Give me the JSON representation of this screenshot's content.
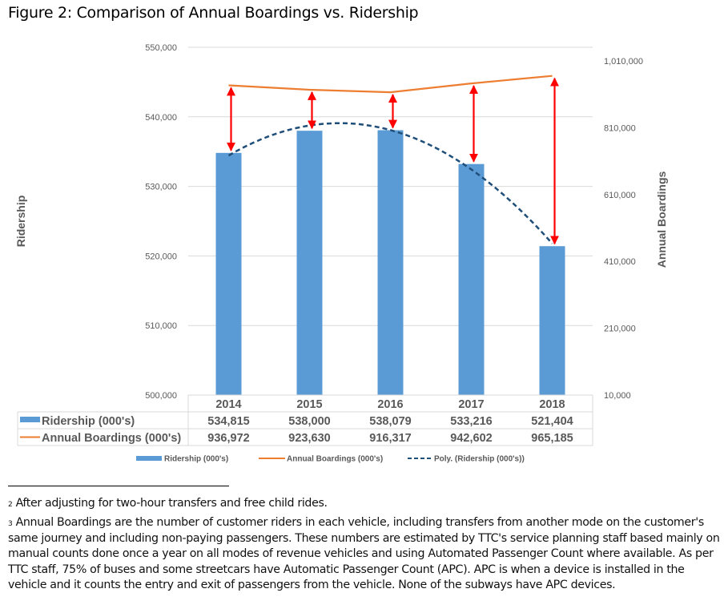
{
  "page": {
    "title": "Figure 2: Comparison of Annual Boardings vs. Ridership",
    "footnotes": [
      {
        "marker": "2",
        "text": "After adjusting for two-hour transfers and free child rides."
      },
      {
        "marker": "3",
        "text": "Annual Boardings are the number of customer riders in each vehicle, including transfers from another mode on the customer's same journey and including non-paying passengers. These numbers are estimated by TTC's service planning staff based mainly on manual counts done once a year on all modes of revenue vehicles and using Automated Passenger Count where available. As per TTC staff, 75% of buses and some streetcars have Automatic Passenger Count (APC). APC is when a device is installed in the vehicle and it counts the entry and exit of passengers from the vehicle. None of the subways have APC devices."
      }
    ]
  },
  "chart_data": {
    "type": "bar",
    "title": "Figure 2: Comparison of Annual Boardings vs. Ridership",
    "categories": [
      "2014",
      "2015",
      "2016",
      "2017",
      "2018"
    ],
    "series": [
      {
        "name": "Ridership (000's)",
        "kind": "bar",
        "axis": "left",
        "color": "#5B9BD5",
        "values": [
          534815,
          538000,
          538079,
          533216,
          521404
        ],
        "labels": [
          "534,815",
          "538,000",
          "538,079",
          "533,216",
          "521,404"
        ]
      },
      {
        "name": "Annual Boardings (000's)",
        "kind": "line",
        "axis": "right",
        "color": "#ED7D31",
        "values": [
          936972,
          923630,
          916317,
          942602,
          965185
        ],
        "labels": [
          "936,972",
          "923,630",
          "916,317",
          "942,602",
          "965,185"
        ]
      },
      {
        "name": "Poly. (Ridership (000's))",
        "kind": "trendline-polynomial",
        "axis": "left",
        "color": "#1F4E79"
      }
    ],
    "annotation": {
      "type": "double-arrows",
      "color": "#FF0000",
      "description": "red double-headed arrows between each ridership bar top and annual boardings line point"
    },
    "ylabel": "Ridership",
    "y2label": "Annual Boardings",
    "ylim": [
      500000,
      550000
    ],
    "y2lim": [
      10000,
      1010000
    ],
    "yticks": [
      "500,000",
      "510,000",
      "520,000",
      "530,000",
      "540,000",
      "550,000"
    ],
    "y2ticks": [
      "10,000",
      "210,000",
      "410,000",
      "610,000",
      "810,000",
      "1,010,000"
    ],
    "ytick_values": [
      500000,
      510000,
      520000,
      530000,
      540000,
      550000
    ],
    "y2tick_values": [
      10000,
      210000,
      410000,
      610000,
      810000,
      1010000
    ],
    "grid": true,
    "data_table": true,
    "legend": {
      "position": "bottom",
      "entries": [
        "Ridership (000's)",
        "Annual Boardings (000's)",
        "Poly. (Ridership (000's))"
      ]
    }
  }
}
